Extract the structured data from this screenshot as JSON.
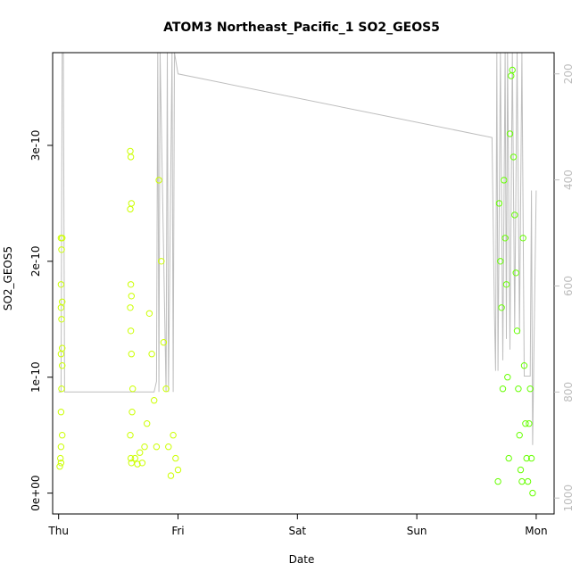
{
  "chart_data": {
    "type": "scatter",
    "title": "ATOM3 Northeast_Pacific_1 SO2_GEOS5",
    "xlabel": "Date",
    "ylabel": "SO2_GEOS5",
    "x_ticks": [
      "Thu",
      "Fri",
      "Sat",
      "Sun",
      "Mon"
    ],
    "x_range_days": [
      -0.05,
      4.15
    ],
    "y_ticks": [
      "0e+00",
      "1e-10",
      "2e-10",
      "3e-10"
    ],
    "y_ticks_values": [
      0,
      1e-10,
      2e-10,
      3e-10
    ],
    "ylim": [
      -1.8e-11,
      3.8e-10
    ],
    "y2_ticks": [
      "200",
      "400",
      "600",
      "800",
      "1000"
    ],
    "y2_ticks_values": [
      200,
      400,
      600,
      800,
      1000
    ],
    "y2lim": [
      1030,
      160
    ],
    "grid": false,
    "colors": {
      "points_early": "#ccff00",
      "points_late": "#66ff00",
      "pressure_line": "#bebebe",
      "axis": "#000000"
    },
    "series": [
      {
        "values_note": "",
        "day": 0,
        "x": [
          0.01,
          0.02,
          0.015,
          0.02,
          0.03,
          0.02,
          0.025,
          0.03,
          0.02,
          0.03,
          0.025,
          0.02,
          0.03,
          0.02,
          0.025,
          0.03,
          0.02
        ],
        "y": [
          2.3e-11,
          2.6e-11,
          3e-11,
          4e-11,
          5e-11,
          7e-11,
          9e-11,
          1.1e-10,
          1.2e-10,
          1.25e-10,
          1.5e-10,
          1.6e-10,
          1.65e-10,
          1.8e-10,
          2.1e-10,
          2.2e-10,
          2.2e-10
        ]
      },
      {
        "day": 0.6,
        "x": [
          0.6,
          0.605,
          0.61,
          0.6,
          0.605,
          0.61,
          0.6,
          0.605,
          0.61,
          0.62,
          0.615,
          0.6,
          0.605,
          0.61
        ],
        "y": [
          2.95e-10,
          2.9e-10,
          2.5e-10,
          2.45e-10,
          1.8e-10,
          1.7e-10,
          1.6e-10,
          1.4e-10,
          1.2e-10,
          9e-11,
          7e-11,
          5e-11,
          3e-11,
          2.6e-11
        ]
      },
      {
        "day": 0.7,
        "x": [
          0.64,
          0.66,
          0.68,
          0.7,
          0.72,
          0.74,
          0.76,
          0.78,
          0.8,
          0.82,
          0.84,
          0.86,
          0.88,
          0.9,
          0.92,
          0.94,
          0.96,
          0.98,
          1.0
        ],
        "y": [
          3e-11,
          2.5e-11,
          3.5e-11,
          2.6e-11,
          4e-11,
          6e-11,
          1.55e-10,
          1.2e-10,
          8e-11,
          4e-11,
          2.7e-10,
          2e-10,
          1.3e-10,
          9e-11,
          4e-11,
          1.5e-11,
          5e-11,
          3e-11,
          2e-11
        ]
      },
      {
        "day": 3.7,
        "x": [
          3.68,
          3.69,
          3.7,
          3.71,
          3.72,
          3.73,
          3.74,
          3.75,
          3.76,
          3.77,
          3.78,
          3.79,
          3.8,
          3.81,
          3.82,
          3.83,
          3.84,
          3.85,
          3.86,
          3.87,
          3.88,
          3.89,
          3.9,
          3.91,
          3.92,
          3.93,
          3.94,
          3.95,
          3.96,
          3.97
        ],
        "y": [
          1e-11,
          2.5e-10,
          2e-10,
          1.6e-10,
          9e-11,
          2.7e-10,
          2.2e-10,
          1.8e-10,
          1e-10,
          3e-11,
          3.1e-10,
          3.6e-10,
          3.65e-10,
          2.9e-10,
          2.4e-10,
          1.9e-10,
          1.4e-10,
          9e-11,
          5e-11,
          2e-11,
          1e-11,
          2.2e-10,
          1.1e-10,
          6e-11,
          3e-11,
          1e-11,
          6e-11,
          9e-11,
          3e-11,
          0
        ]
      }
    ],
    "pressure_line": {
      "x": [
        0.0,
        0.02,
        0.03,
        0.04,
        0.05,
        0.8,
        0.82,
        0.83,
        0.84,
        0.85,
        0.9,
        0.91,
        0.92,
        0.95,
        0.96,
        0.97,
        1.0,
        3.63,
        3.65,
        3.66,
        3.67,
        3.68,
        3.7,
        3.72,
        3.74,
        3.75,
        3.76,
        3.78,
        3.8,
        3.82,
        3.84,
        3.86,
        3.88,
        3.9,
        3.95,
        3.96,
        3.97,
        4.0
      ],
      "y": [
        800,
        800,
        150,
        150,
        800,
        800,
        780,
        150,
        800,
        150,
        800,
        150,
        800,
        150,
        800,
        150,
        200,
        320,
        650,
        760,
        150,
        760,
        150,
        740,
        150,
        700,
        150,
        720,
        150,
        680,
        150,
        690,
        150,
        770,
        770,
        420,
        900,
        420
      ]
    }
  }
}
